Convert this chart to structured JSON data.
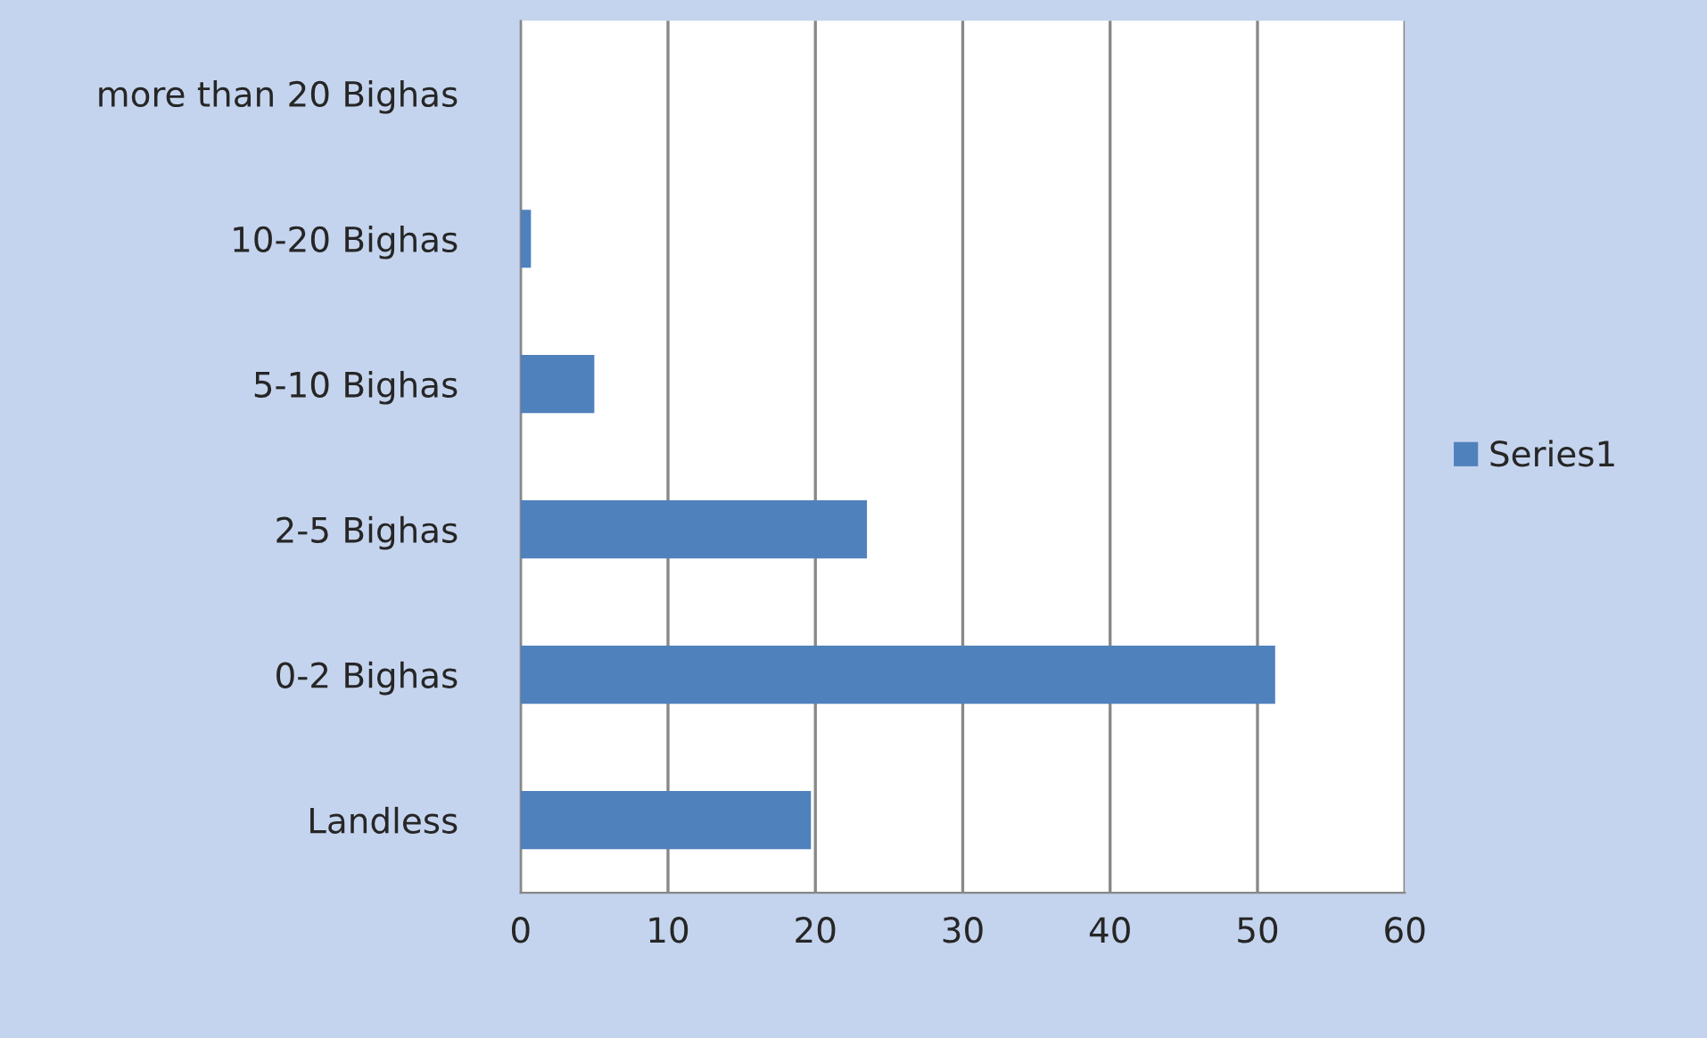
{
  "chart_data": {
    "type": "bar",
    "orientation": "horizontal",
    "categories": [
      "more than 20 Bighas",
      "10-20 Bighas",
      "5-10 Bighas",
      "2-5 Bighas",
      "0-2 Bighas",
      "Landless"
    ],
    "series": [
      {
        "name": "Series1",
        "color": "#4f81bd",
        "values": [
          0,
          0.7,
          5.0,
          23.5,
          51.2,
          19.7
        ]
      }
    ],
    "xlim": [
      0,
      60
    ],
    "xticks": [
      0,
      10,
      20,
      30,
      40,
      50,
      60
    ],
    "grid": "x",
    "legend": "right"
  }
}
